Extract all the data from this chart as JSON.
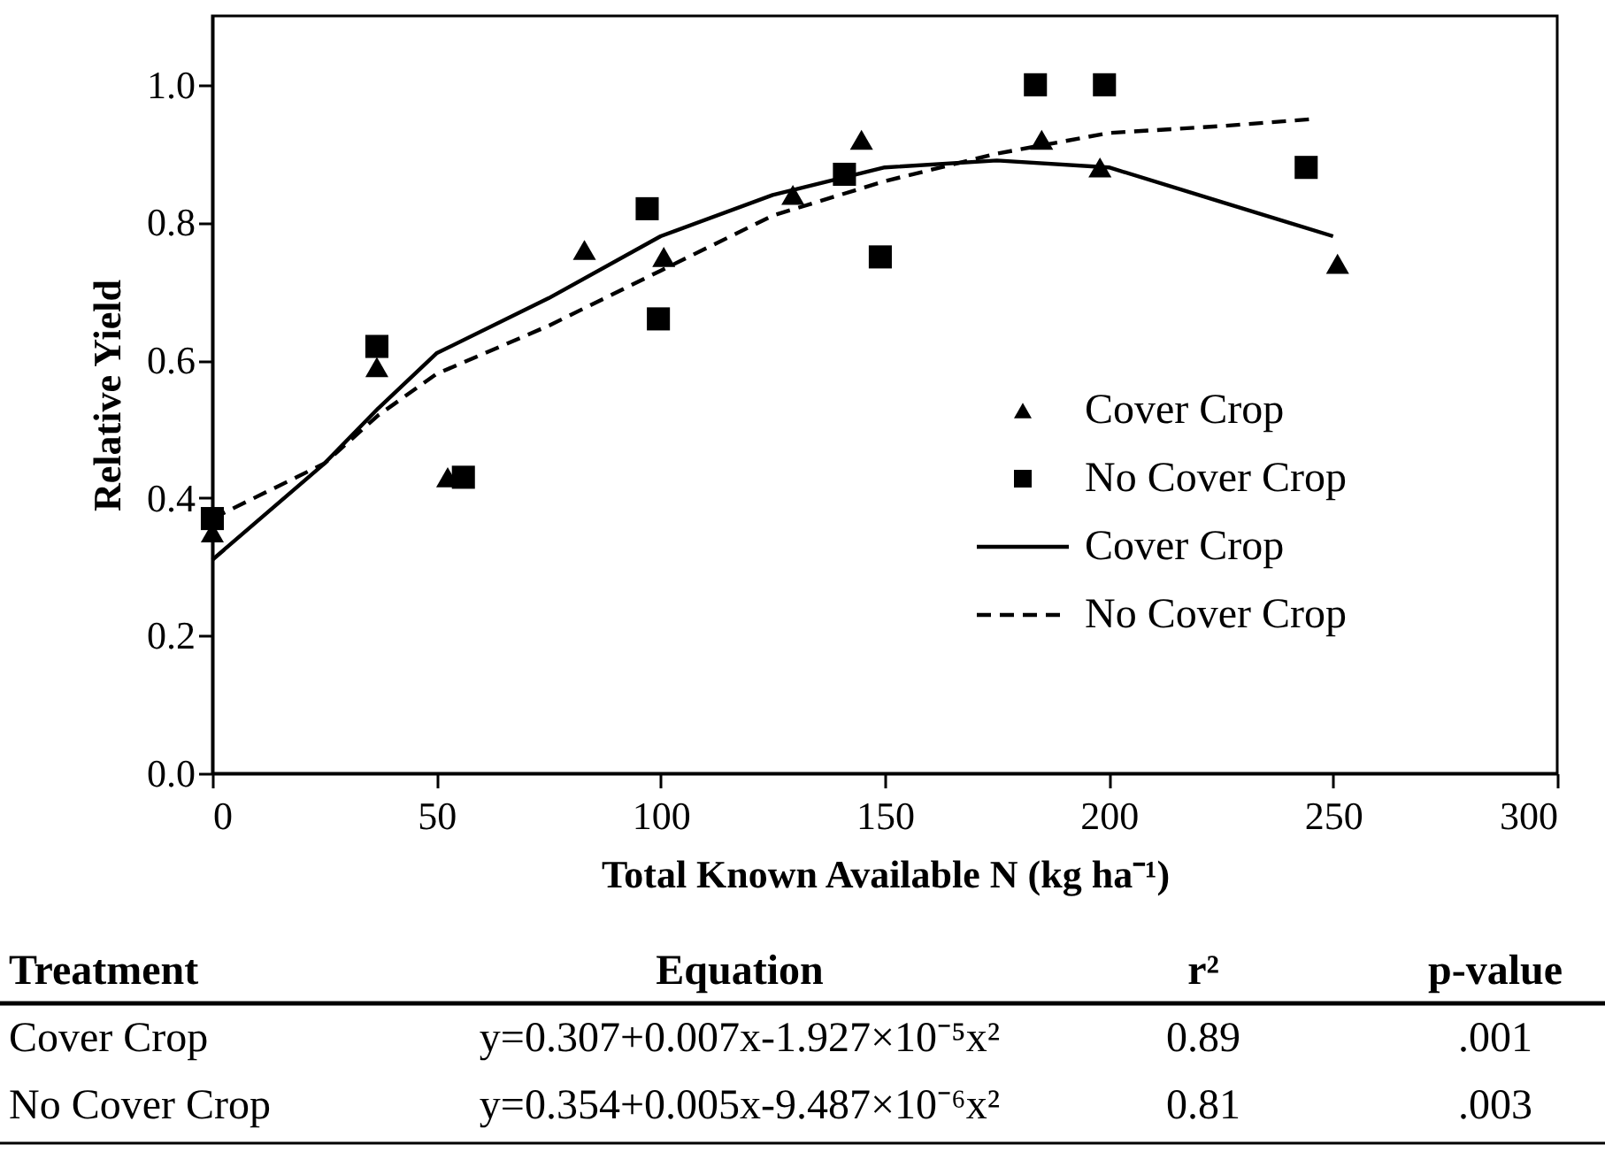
{
  "chart_data": {
    "type": "scatter",
    "xlabel": "Total Known Available N (kg ha⁻¹)",
    "ylabel": "Relative Yield",
    "xlim": [
      0,
      300
    ],
    "xticks": [
      0,
      50,
      100,
      150,
      200,
      250,
      300
    ],
    "ylim": [
      0,
      1.1
    ],
    "yticks": [
      {
        "value": 0,
        "label": "0.0"
      },
      0.2,
      0.4,
      0.6,
      0.8,
      {
        "value": 1,
        "label": "1.0"
      }
    ],
    "grid": false,
    "legend": "right",
    "series": [
      {
        "name": "Cover Crop",
        "marker": "triangle",
        "color": "#000000",
        "x": [
          0,
          36.7,
          52.5,
          83,
          100.7,
          129.5,
          144.8,
          185,
          198,
          251
        ],
        "values": [
          0.35,
          0.59,
          0.43,
          0.76,
          0.75,
          0.84,
          0.92,
          0.92,
          0.88,
          0.74
        ]
      },
      {
        "name": "No Cover Crop",
        "marker": "square",
        "color": "#000000",
        "x": [
          0,
          36.7,
          56,
          97,
          99.5,
          141,
          149,
          183.6,
          199,
          244
        ],
        "values": [
          0.37,
          0.62,
          0.43,
          0.82,
          0.66,
          0.87,
          0.75,
          1.0,
          1.0,
          0.88
        ]
      },
      {
        "name": "Cover Crop",
        "type": "line",
        "line_style": "solid",
        "color": "#000000",
        "x": [
          0,
          25,
          37,
          50,
          75,
          100,
          125,
          150,
          175,
          200,
          225,
          250
        ],
        "values": [
          0.31,
          0.45,
          0.53,
          0.61,
          0.69,
          0.78,
          0.84,
          0.88,
          0.89,
          0.88,
          0.83,
          0.78
        ]
      },
      {
        "name": "No Cover Crop",
        "type": "line",
        "line_style": "dashed",
        "color": "#000000",
        "x": [
          0,
          25,
          37,
          50,
          75,
          100,
          125,
          150,
          175,
          200,
          225,
          245
        ],
        "values": [
          0.37,
          0.45,
          0.52,
          0.58,
          0.65,
          0.73,
          0.81,
          0.86,
          0.9,
          0.93,
          0.94,
          0.95
        ]
      }
    ],
    "annotations": [
      "Treatment",
      "Equation",
      "r²",
      "p-value",
      "Cover Crop",
      "y=0.307+0.007x-1.927×10⁻⁵x²",
      "0.89",
      ".001",
      "No Cover Crop",
      "y=0.354+0.005x-9.487×10⁻⁶x²",
      "0.81",
      ".003"
    ]
  }
}
